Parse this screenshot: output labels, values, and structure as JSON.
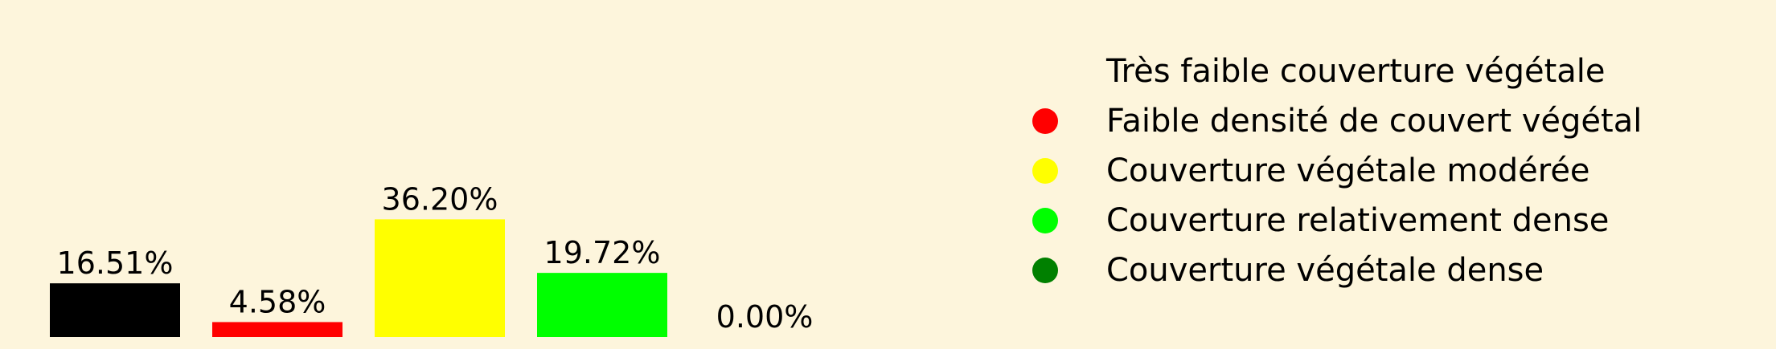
{
  "chart_data": {
    "type": "bar",
    "categories": [
      "Très faible couverture végétale",
      "Faible densité de couvert végétal",
      "Couverture végétale modérée",
      "Couverture relativement dense",
      "Couverture végétale dense"
    ],
    "values": [
      16.51,
      4.58,
      36.2,
      19.72,
      0.0
    ],
    "value_labels": [
      "16.51%",
      "4.58%",
      "36.20%",
      "19.72%",
      "0.00%"
    ],
    "colors": [
      "#000000",
      "#ff0000",
      "#ffff00",
      "#00ff00",
      "#008000"
    ],
    "axes_visible": false,
    "grid": false,
    "legend_position": "right"
  }
}
